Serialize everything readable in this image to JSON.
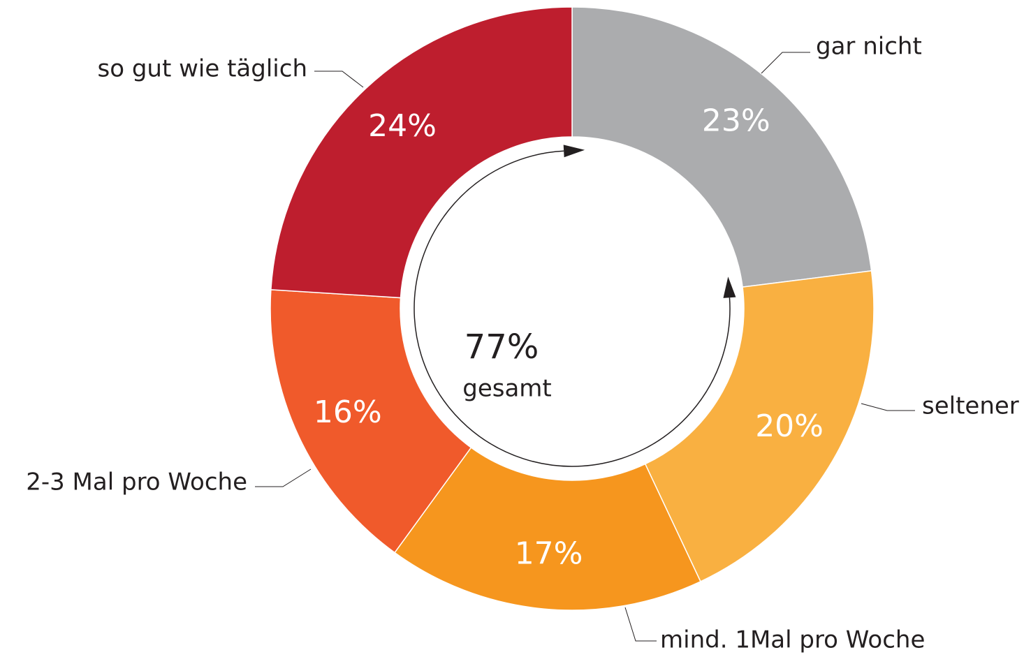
{
  "chart_data": {
    "type": "donut",
    "categories": [
      "gar nicht",
      "seltener",
      "mind. 1Mal pro Woche",
      "2-3 Mal pro Woche",
      "so gut wie täglich"
    ],
    "values": [
      23,
      20,
      17,
      16,
      24
    ],
    "value_labels": [
      "23%",
      "20%",
      "17%",
      "16%",
      "24%"
    ],
    "colors": [
      "#abacae",
      "#f9b041",
      "#f6961e",
      "#f05a2b",
      "#be1e2e"
    ],
    "annotations": [
      "77%",
      "gesamt"
    ]
  }
}
